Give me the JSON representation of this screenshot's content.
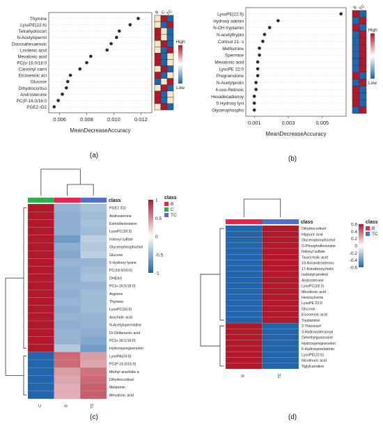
{
  "colors": {
    "high": "#b2182b",
    "low": "#2166ac",
    "mid": "#f7f7f7",
    "cream": "#f4e7c6",
    "class_B": "#e8264d",
    "class_C": "#2eb04a",
    "class_TC": "#4f6fd1",
    "dot": "#2b2b2b",
    "grid": "#d9d9d9"
  },
  "chart_data": [
    {
      "panel": "(a)",
      "type": "scatter",
      "xlabel": "MeanDecreaseAccuracy",
      "xlim": [
        0.0052,
        0.0128
      ],
      "xticks": [
        "0.006",
        "0.008",
        "0.010",
        "0.012"
      ],
      "xtick_values": [
        0.006,
        0.008,
        0.01,
        0.012
      ],
      "categories": [
        "Thymine",
        "LysoPE(22:6)",
        "Tetrahydrocort",
        "N-Acetylsperml",
        "Docosahexaenoic",
        "Linolenic acid",
        "Mevalonic acid",
        "PC(o-16:0/18:0",
        "Carvonyl carni",
        "Eicosenoic aci",
        "Glucose",
        "Dihydrocortiso",
        "Androsterone",
        "PC(P-16:0/16:0",
        "PGE2 /O2"
      ],
      "values": [
        0.0118,
        0.0112,
        0.0104,
        0.0102,
        0.0098,
        0.0095,
        0.0083,
        0.008,
        0.0075,
        0.0068,
        0.0066,
        0.0065,
        0.0062,
        0.0059,
        0.0056
      ],
      "heatmap_columns": [
        "B",
        "C",
        "TC"
      ],
      "heatmap_levels": [
        [
          "cream",
          "high",
          "low"
        ],
        [
          "cream",
          "low",
          "high"
        ],
        [
          "high",
          "cream",
          "low"
        ],
        [
          "high",
          "cream",
          "low"
        ],
        [
          "cream",
          "high",
          "low"
        ],
        [
          "cream",
          "low",
          "high"
        ],
        [
          "high",
          "low",
          "cream"
        ],
        [
          "high",
          "low",
          "cream"
        ],
        [
          "cream",
          "high",
          "low"
        ],
        [
          "high",
          "low",
          "cream"
        ],
        [
          "low",
          "cream",
          "high"
        ],
        [
          "cream",
          "high",
          "low"
        ],
        [
          "high",
          "low",
          "cream"
        ],
        [
          "high",
          "low",
          "cream"
        ],
        [
          "cream",
          "high",
          "low"
        ]
      ],
      "legend": {
        "high": "High",
        "low": "Low"
      }
    },
    {
      "panel": "(b)",
      "type": "scatter",
      "xlabel": "MeanDecreaseAccuracy",
      "xlim": [
        0.0005,
        0.0064
      ],
      "xticks": [
        "0.001",
        "0.003",
        "0.005"
      ],
      "xtick_values": [
        0.001,
        0.003,
        0.005
      ],
      "categories": [
        "LysoPE(22:6)",
        "Hydroxy adenin",
        "N-OH tryptamin",
        "N-acetyltrypto",
        "Cortisol 21- s",
        "Methionine",
        "Spermine",
        "Mevalonic acid",
        "LysoPE 22:0",
        "Pregnenolone",
        "N-Acetylprolin",
        "4-oxo-Retinoic",
        "Hexadecadienoy",
        "5 Hydroxy lysi",
        "Glycerophospho"
      ],
      "values": [
        0.0061,
        0.0024,
        0.0019,
        0.0016,
        0.0015,
        0.0013,
        0.0013,
        0.0012,
        0.0012,
        0.0012,
        0.0011,
        0.0011,
        0.001,
        0.001,
        0.001
      ],
      "heatmap_columns": [
        "B",
        "TC"
      ],
      "heatmap_levels": [
        [
          "high",
          "low"
        ],
        [
          "low",
          "high"
        ],
        [
          "high",
          "low"
        ],
        [
          "low",
          "high"
        ],
        [
          "low",
          "high"
        ],
        [
          "low",
          "high"
        ],
        [
          "low",
          "high"
        ],
        [
          "low",
          "high"
        ],
        [
          "low",
          "high"
        ],
        [
          "high",
          "low"
        ],
        [
          "low",
          "high"
        ],
        [
          "high",
          "low"
        ],
        [
          "high",
          "low"
        ],
        [
          "high",
          "low"
        ],
        [
          "low",
          "high"
        ]
      ],
      "legend": {
        "high": "High",
        "low": "Low"
      }
    },
    {
      "panel": "(c)",
      "type": "heatmap",
      "columns": [
        "C",
        "B",
        "TC"
      ],
      "column_class": [
        "C",
        "B",
        "TC"
      ],
      "class_title": "class",
      "class_legend": [
        "B",
        "C",
        "TC"
      ],
      "rows": [
        "PGE2 /D2",
        "Androsterone",
        "Estriol/testostero",
        "LysoPC(18:3)",
        "Indoxyl sulfate",
        "Glycerophosphochol",
        "Glucose",
        "5 Hydroxy lysine",
        "PC(16:0/16:0)",
        "DHEAS",
        "PC(o-16:0/18:0)",
        "Arginine",
        "Thymine",
        "LysoPC(16:0)",
        "Arachidic acid",
        "N-Acetylspermidine",
        "Di-OHbenzoic acid",
        "PC(o-18:1/16:0)",
        "Hydroxypregnenolon",
        "LysoPA(24:0)",
        "PC(P-16:0/16:0)",
        "Methyl arachidic a",
        "Dihydrocortisol",
        "Melatonin",
        "Mevalonic acid"
      ],
      "values": [
        [
          1.1,
          -0.5,
          -0.4
        ],
        [
          1.1,
          -0.55,
          -0.45
        ],
        [
          1.1,
          -0.55,
          -0.4
        ],
        [
          1.1,
          -0.55,
          -0.45
        ],
        [
          1.1,
          -0.7,
          -0.3
        ],
        [
          1.1,
          -0.55,
          -0.35
        ],
        [
          1.1,
          -0.6,
          -0.3
        ],
        [
          1.1,
          -0.5,
          -0.5
        ],
        [
          1.1,
          -0.55,
          -0.45
        ],
        [
          1.1,
          -0.55,
          -0.4
        ],
        [
          1.1,
          -0.5,
          -0.5
        ],
        [
          1.1,
          -0.55,
          -0.45
        ],
        [
          1.1,
          -0.5,
          -0.45
        ],
        [
          1.1,
          -0.55,
          -0.45
        ],
        [
          1.1,
          -0.5,
          -0.5
        ],
        [
          1.1,
          -0.55,
          -0.5
        ],
        [
          1.1,
          -0.5,
          -0.55
        ],
        [
          1.1,
          -0.5,
          -0.6
        ],
        [
          1.1,
          -0.35,
          -0.7
        ],
        [
          -1.1,
          0.7,
          0.45
        ],
        [
          -1.1,
          0.7,
          0.4
        ],
        [
          -1.1,
          0.45,
          0.65
        ],
        [
          -1.1,
          0.4,
          0.7
        ],
        [
          -1.1,
          0.35,
          0.75
        ],
        [
          -1.1,
          0.35,
          0.75
        ]
      ],
      "colorbar_ticks": [
        1,
        0.5,
        0,
        -0.5,
        -1
      ]
    },
    {
      "panel": "(d)",
      "type": "heatmap",
      "columns": [
        "B",
        "TC"
      ],
      "column_class": [
        "B",
        "TC"
      ],
      "class_title": "class",
      "class_legend": [
        "B",
        "TC"
      ],
      "rows": [
        "Dihydrocortisol",
        "Hippuric acid",
        "Glycerophosphochol",
        "O-Phosphothreonine",
        "Indoxyl sulfate",
        "Taurocholic acid",
        "19-Norandrosteronc",
        "17-Ketodeoxycholic",
        "Isobutylcarnitine",
        "Androsterone",
        "LysoPC(18:3)",
        "Mevalonic acid",
        "Hexosyloxine",
        "LysoPE 22:0",
        "Glucose",
        "Eicosenoic acid",
        "Tryptamine",
        "2-Thiouracil",
        "3-Hydroxydecanoyl",
        "Dimethylguanosine",
        "Hydroxypregnenolon",
        "6-Hydroxymelatonin",
        "LysoPE(22:6)",
        "Nicotinuric acid",
        "Tiglylcarnitine"
      ],
      "values": [
        [
          -0.7,
          0.7
        ],
        [
          -0.7,
          0.7
        ],
        [
          -0.7,
          0.7
        ],
        [
          -0.7,
          0.7
        ],
        [
          -0.7,
          0.7
        ],
        [
          -0.7,
          0.7
        ],
        [
          -0.7,
          0.7
        ],
        [
          -0.7,
          0.7
        ],
        [
          -0.7,
          0.7
        ],
        [
          -0.7,
          0.7
        ],
        [
          -0.7,
          0.7
        ],
        [
          -0.7,
          0.7
        ],
        [
          -0.7,
          0.7
        ],
        [
          -0.7,
          0.7
        ],
        [
          -0.7,
          0.7
        ],
        [
          -0.7,
          0.7
        ],
        [
          -0.7,
          0.7
        ],
        [
          0.7,
          -0.7
        ],
        [
          0.7,
          -0.7
        ],
        [
          0.7,
          -0.7
        ],
        [
          0.7,
          -0.7
        ],
        [
          0.7,
          -0.7
        ],
        [
          0.7,
          -0.7
        ],
        [
          0.7,
          -0.7
        ],
        [
          0.7,
          -0.7
        ]
      ],
      "colorbar_ticks": [
        0.6,
        0.4,
        0.2,
        0,
        -0.2,
        -0.4,
        -0.6
      ]
    }
  ]
}
